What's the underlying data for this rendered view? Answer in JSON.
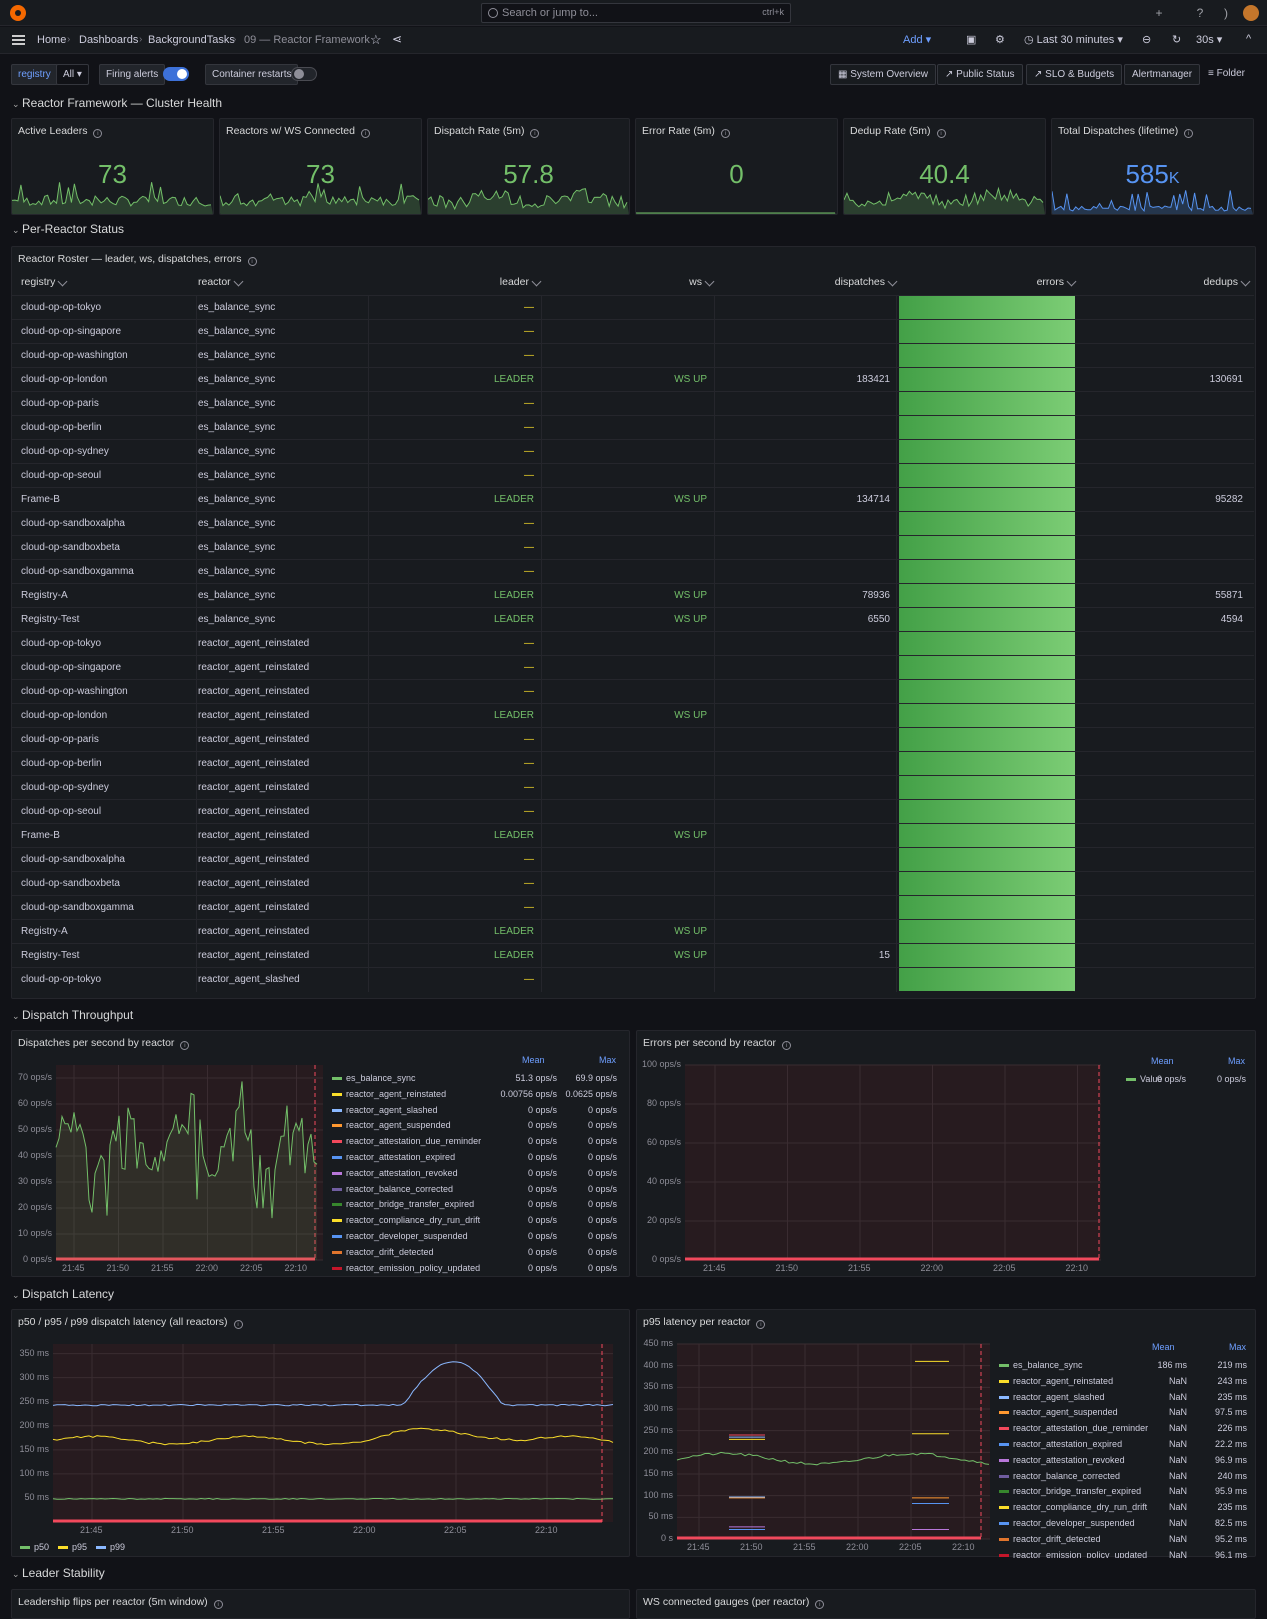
{
  "topbar": {
    "search_placeholder": "Search or jump to...",
    "search_kbd": "ctrl+k"
  },
  "breadcrumb": [
    "Home",
    "Dashboards",
    "BackgroundTasks",
    "09 — Reactor Framework"
  ],
  "nav": {
    "add_label": "Add",
    "time_range": "Last 30 minutes",
    "refresh": "30s"
  },
  "vars": {
    "registry_label": "registry",
    "registry_value": "All",
    "firing_label": "Firing alerts",
    "restarts_label": "Container restarts"
  },
  "links": [
    "System Overview",
    "Public Status",
    "SLO & Budgets",
    "Alertmanager",
    "Folder"
  ],
  "rows": {
    "health": "Reactor Framework — Cluster Health",
    "per_reactor": "Per-Reactor Status",
    "throughput": "Dispatch Throughput",
    "latency": "Dispatch Latency",
    "leader": "Leader Stability"
  },
  "stats": [
    {
      "title": "Active Leaders",
      "value": "73",
      "unit": ""
    },
    {
      "title": "Reactors w/ WS Connected",
      "value": "73",
      "unit": ""
    },
    {
      "title": "Dispatch Rate (5m)",
      "value": "57.8",
      "unit": ""
    },
    {
      "title": "Error Rate (5m)",
      "value": "0",
      "unit": ""
    },
    {
      "title": "Dedup Rate (5m)",
      "value": "40.4",
      "unit": ""
    },
    {
      "title": "Total Dispatches (lifetime)",
      "value": "585",
      "unit": "K"
    }
  ],
  "table": {
    "title": "Reactor Roster — leader, ws, dispatches, errors",
    "columns": [
      "registry",
      "reactor",
      "leader",
      "ws",
      "dispatches",
      "errors",
      "dedups"
    ],
    "rows": [
      [
        "cloud-op-op-tokyo",
        "es_balance_sync",
        "—",
        "",
        "",
        "",
        ""
      ],
      [
        "cloud-op-op-singapore",
        "es_balance_sync",
        "—",
        "",
        "",
        "",
        ""
      ],
      [
        "cloud-op-op-washington",
        "es_balance_sync",
        "—",
        "",
        "",
        "",
        ""
      ],
      [
        "cloud-op-op-london",
        "es_balance_sync",
        "LEADER",
        "WS UP",
        "183421",
        "",
        "130691"
      ],
      [
        "cloud-op-op-paris",
        "es_balance_sync",
        "—",
        "",
        "",
        "",
        ""
      ],
      [
        "cloud-op-op-berlin",
        "es_balance_sync",
        "—",
        "",
        "",
        "",
        ""
      ],
      [
        "cloud-op-op-sydney",
        "es_balance_sync",
        "—",
        "",
        "",
        "",
        ""
      ],
      [
        "cloud-op-op-seoul",
        "es_balance_sync",
        "—",
        "",
        "",
        "",
        ""
      ],
      [
        "Frame-B",
        "es_balance_sync",
        "LEADER",
        "WS UP",
        "134714",
        "",
        "95282"
      ],
      [
        "cloud-op-sandboxalpha",
        "es_balance_sync",
        "—",
        "",
        "",
        "",
        ""
      ],
      [
        "cloud-op-sandboxbeta",
        "es_balance_sync",
        "—",
        "",
        "",
        "",
        ""
      ],
      [
        "cloud-op-sandboxgamma",
        "es_balance_sync",
        "—",
        "",
        "",
        "",
        ""
      ],
      [
        "Registry-A",
        "es_balance_sync",
        "LEADER",
        "WS UP",
        "78936",
        "",
        "55871"
      ],
      [
        "Registry-Test",
        "es_balance_sync",
        "LEADER",
        "WS UP",
        "6550",
        "",
        "4594"
      ],
      [
        "cloud-op-op-tokyo",
        "reactor_agent_reinstated",
        "—",
        "",
        "",
        "",
        ""
      ],
      [
        "cloud-op-op-singapore",
        "reactor_agent_reinstated",
        "—",
        "",
        "",
        "",
        ""
      ],
      [
        "cloud-op-op-washington",
        "reactor_agent_reinstated",
        "—",
        "",
        "",
        "",
        ""
      ],
      [
        "cloud-op-op-london",
        "reactor_agent_reinstated",
        "LEADER",
        "WS UP",
        "",
        "",
        ""
      ],
      [
        "cloud-op-op-paris",
        "reactor_agent_reinstated",
        "—",
        "",
        "",
        "",
        ""
      ],
      [
        "cloud-op-op-berlin",
        "reactor_agent_reinstated",
        "—",
        "",
        "",
        "",
        ""
      ],
      [
        "cloud-op-op-sydney",
        "reactor_agent_reinstated",
        "—",
        "",
        "",
        "",
        ""
      ],
      [
        "cloud-op-op-seoul",
        "reactor_agent_reinstated",
        "—",
        "",
        "",
        "",
        ""
      ],
      [
        "Frame-B",
        "reactor_agent_reinstated",
        "LEADER",
        "WS UP",
        "",
        "",
        ""
      ],
      [
        "cloud-op-sandboxalpha",
        "reactor_agent_reinstated",
        "—",
        "",
        "",
        "",
        ""
      ],
      [
        "cloud-op-sandboxbeta",
        "reactor_agent_reinstated",
        "—",
        "",
        "",
        "",
        ""
      ],
      [
        "cloud-op-sandboxgamma",
        "reactor_agent_reinstated",
        "—",
        "",
        "",
        "",
        ""
      ],
      [
        "Registry-A",
        "reactor_agent_reinstated",
        "LEADER",
        "WS UP",
        "",
        "",
        ""
      ],
      [
        "Registry-Test",
        "reactor_agent_reinstated",
        "LEADER",
        "WS UP",
        "15",
        "",
        ""
      ],
      [
        "cloud-op-op-tokyo",
        "reactor_agent_slashed",
        "—",
        "",
        "",
        "",
        ""
      ]
    ]
  },
  "panels": {
    "dispatch_title": "Dispatches per second by reactor",
    "errors_title": "Errors per second by reactor",
    "latency_title": "p50 / p95 / p99 dispatch latency (all reactors)",
    "p95_title": "p95 latency per reactor",
    "leader_title": "Leadership flips per reactor (5m window)",
    "ws_title": "WS connected gauges (per reactor)",
    "legend_mean": "Mean",
    "legend_max": "Max"
  },
  "chart_data": [
    {
      "type": "line",
      "title": "Dispatches per second by reactor",
      "x": [
        "21:45",
        "21:50",
        "21:55",
        "22:00",
        "22:05",
        "22:10"
      ],
      "yticks": [
        "70 ops/s",
        "60 ops/s",
        "50 ops/s",
        "40 ops/s",
        "30 ops/s",
        "20 ops/s",
        "10 ops/s",
        "0 ops/s"
      ],
      "ylim": [
        0,
        75
      ],
      "series": [
        {
          "name": "es_balance_sync",
          "color": "#73bf69",
          "mean": "51.3 ops/s",
          "max": "69.9 ops/s"
        },
        {
          "name": "reactor_agent_reinstated",
          "color": "#fade2a",
          "mean": "0.00756 ops/s",
          "max": "0.0625 ops/s"
        },
        {
          "name": "reactor_agent_slashed",
          "color": "#8ab8ff",
          "mean": "0 ops/s",
          "max": "0 ops/s"
        },
        {
          "name": "reactor_agent_suspended",
          "color": "#ff9830",
          "mean": "0 ops/s",
          "max": "0 ops/s"
        },
        {
          "name": "reactor_attestation_due_reminder",
          "color": "#f2495c",
          "mean": "0 ops/s",
          "max": "0 ops/s"
        },
        {
          "name": "reactor_attestation_expired",
          "color": "#5794f2",
          "mean": "0 ops/s",
          "max": "0 ops/s"
        },
        {
          "name": "reactor_attestation_revoked",
          "color": "#b877d9",
          "mean": "0 ops/s",
          "max": "0 ops/s"
        },
        {
          "name": "reactor_balance_corrected",
          "color": "#705da0",
          "mean": "0 ops/s",
          "max": "0 ops/s"
        },
        {
          "name": "reactor_bridge_transfer_expired",
          "color": "#37872d",
          "mean": "0 ops/s",
          "max": "0 ops/s"
        },
        {
          "name": "reactor_compliance_dry_run_drift",
          "color": "#fade2a",
          "mean": "0 ops/s",
          "max": "0 ops/s"
        },
        {
          "name": "reactor_developer_suspended",
          "color": "#5794f2",
          "mean": "0 ops/s",
          "max": "0 ops/s"
        },
        {
          "name": "reactor_drift_detected",
          "color": "#e0752d",
          "mean": "0 ops/s",
          "max": "0 ops/s"
        },
        {
          "name": "reactor_emission_policy_updated",
          "color": "#c4162a",
          "mean": "0 ops/s",
          "max": "0 ops/s"
        }
      ]
    },
    {
      "type": "line",
      "title": "Errors per second by reactor",
      "x": [
        "21:45",
        "21:50",
        "21:55",
        "22:00",
        "22:05",
        "22:10"
      ],
      "yticks": [
        "100 ops/s",
        "80 ops/s",
        "60 ops/s",
        "40 ops/s",
        "20 ops/s",
        "0 ops/s"
      ],
      "ylim": [
        0,
        100
      ],
      "series": [
        {
          "name": "Value",
          "color": "#73bf69",
          "mean": "0 ops/s",
          "max": "0 ops/s"
        }
      ]
    },
    {
      "type": "line",
      "title": "p50 / p95 / p99 dispatch latency (all reactors)",
      "x": [
        "21:45",
        "21:50",
        "21:55",
        "22:00",
        "22:05",
        "22:10"
      ],
      "yticks": [
        "350 ms",
        "300 ms",
        "250 ms",
        "200 ms",
        "150 ms",
        "100 ms",
        "50 ms"
      ],
      "ylim": [
        0,
        370
      ],
      "series": [
        {
          "name": "p50",
          "color": "#73bf69"
        },
        {
          "name": "p95",
          "color": "#fade2a"
        },
        {
          "name": "p99",
          "color": "#8ab8ff"
        }
      ]
    },
    {
      "type": "line",
      "title": "p95 latency per reactor",
      "x": [
        "21:45",
        "21:50",
        "21:55",
        "22:00",
        "22:05",
        "22:10"
      ],
      "yticks": [
        "450 ms",
        "400 ms",
        "350 ms",
        "300 ms",
        "250 ms",
        "200 ms",
        "150 ms",
        "100 ms",
        "50 ms",
        "0 s"
      ],
      "ylim": [
        0,
        450
      ],
      "series": [
        {
          "name": "es_balance_sync",
          "color": "#73bf69",
          "mean": "186 ms",
          "max": "219 ms"
        },
        {
          "name": "reactor_agent_reinstated",
          "color": "#fade2a",
          "mean": "NaN",
          "max": "243 ms"
        },
        {
          "name": "reactor_agent_slashed",
          "color": "#8ab8ff",
          "mean": "NaN",
          "max": "235 ms"
        },
        {
          "name": "reactor_agent_suspended",
          "color": "#ff9830",
          "mean": "NaN",
          "max": "97.5 ms"
        },
        {
          "name": "reactor_attestation_due_reminder",
          "color": "#f2495c",
          "mean": "NaN",
          "max": "226 ms"
        },
        {
          "name": "reactor_attestation_expired",
          "color": "#5794f2",
          "mean": "NaN",
          "max": "22.2 ms"
        },
        {
          "name": "reactor_attestation_revoked",
          "color": "#b877d9",
          "mean": "NaN",
          "max": "96.9 ms"
        },
        {
          "name": "reactor_balance_corrected",
          "color": "#705da0",
          "mean": "NaN",
          "max": "240 ms"
        },
        {
          "name": "reactor_bridge_transfer_expired",
          "color": "#37872d",
          "mean": "NaN",
          "max": "95.9 ms"
        },
        {
          "name": "reactor_compliance_dry_run_drift",
          "color": "#fade2a",
          "mean": "NaN",
          "max": "235 ms"
        },
        {
          "name": "reactor_developer_suspended",
          "color": "#5794f2",
          "mean": "NaN",
          "max": "82.5 ms"
        },
        {
          "name": "reactor_drift_detected",
          "color": "#e0752d",
          "mean": "NaN",
          "max": "95.2 ms"
        },
        {
          "name": "reactor_emission_policy_updated",
          "color": "#c4162a",
          "mean": "NaN",
          "max": "96.1 ms"
        }
      ]
    }
  ]
}
